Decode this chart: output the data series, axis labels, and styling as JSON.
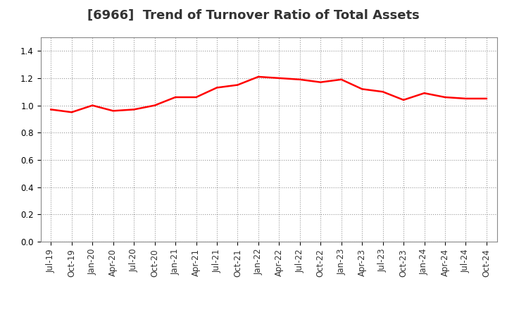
{
  "title": "[6966]  Trend of Turnover Ratio of Total Assets",
  "x_labels": [
    "Jul-19",
    "Oct-19",
    "Jan-20",
    "Apr-20",
    "Jul-20",
    "Oct-20",
    "Jan-21",
    "Apr-21",
    "Jul-21",
    "Oct-21",
    "Jan-22",
    "Apr-22",
    "Jul-22",
    "Oct-22",
    "Jan-23",
    "Apr-23",
    "Jul-23",
    "Oct-23",
    "Jan-24",
    "Apr-24",
    "Jul-24",
    "Oct-24"
  ],
  "y_values": [
    0.97,
    0.95,
    1.0,
    0.96,
    0.97,
    1.0,
    1.06,
    1.06,
    1.13,
    1.15,
    1.21,
    1.2,
    1.19,
    1.17,
    1.19,
    1.12,
    1.1,
    1.04,
    1.09,
    1.06,
    1.05,
    1.05
  ],
  "line_color": "#FF0000",
  "line_width": 1.8,
  "ylim": [
    0.0,
    1.5
  ],
  "yticks": [
    0.0,
    0.2,
    0.4,
    0.6,
    0.8,
    1.0,
    1.2,
    1.4
  ],
  "grid_color": "#999999",
  "grid_style": "dotted",
  "background_color": "#ffffff",
  "title_fontsize": 13,
  "tick_fontsize": 8.5,
  "title_color": "#333333"
}
